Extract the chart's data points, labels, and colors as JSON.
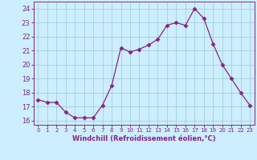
{
  "x": [
    0,
    1,
    2,
    3,
    4,
    5,
    6,
    7,
    8,
    9,
    10,
    11,
    12,
    13,
    14,
    15,
    16,
    17,
    18,
    19,
    20,
    21,
    22,
    23
  ],
  "y": [
    17.5,
    17.3,
    17.3,
    16.6,
    16.2,
    16.2,
    16.2,
    17.1,
    18.5,
    21.2,
    20.9,
    21.1,
    21.4,
    21.8,
    22.8,
    23.0,
    22.8,
    24.0,
    23.3,
    21.5,
    20.0,
    19.0,
    18.0,
    17.1
  ],
  "line_color": "#882288",
  "marker": "D",
  "marker_size": 2.5,
  "bg_color": "#cceeff",
  "grid_color": "#99cccc",
  "xlabel": "Windchill (Refroidissement éolien,°C)",
  "xlim": [
    -0.5,
    23.5
  ],
  "ylim": [
    15.7,
    24.5
  ],
  "yticks": [
    16,
    17,
    18,
    19,
    20,
    21,
    22,
    23,
    24
  ],
  "xticks": [
    0,
    1,
    2,
    3,
    4,
    5,
    6,
    7,
    8,
    9,
    10,
    11,
    12,
    13,
    14,
    15,
    16,
    17,
    18,
    19,
    20,
    21,
    22,
    23
  ]
}
